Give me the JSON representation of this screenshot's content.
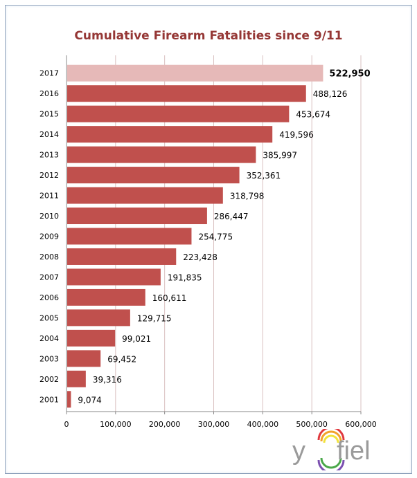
{
  "chart_data": {
    "type": "bar",
    "orientation": "horizontal",
    "title": "Cumulative Firearm Fatalities since 9/11",
    "xlabel": "",
    "ylabel": "",
    "categories": [
      "2001",
      "2002",
      "2003",
      "2004",
      "2005",
      "2006",
      "2007",
      "2008",
      "2009",
      "2010",
      "2011",
      "2012",
      "2013",
      "2014",
      "2015",
      "2016",
      "2017"
    ],
    "values": [
      9074,
      39316,
      69452,
      99021,
      129715,
      160611,
      191835,
      223428,
      254775,
      286447,
      318798,
      352361,
      385997,
      419596,
      453674,
      488126,
      522950
    ],
    "data_labels": [
      "9,074",
      "39,316",
      "69,452",
      "99,021",
      "129,715",
      "160,611",
      "191,835",
      "223,428",
      "254,775",
      "286,447",
      "318,798",
      "352,361",
      "385,997",
      "419,596",
      "453,674",
      "488,126",
      "522,950"
    ],
    "highlight_category": "2017",
    "xlim": [
      0,
      600000
    ],
    "xticks": [
      0,
      100000,
      200000,
      300000,
      400000,
      500000,
      600000
    ],
    "xtick_labels": [
      "0",
      "100,000",
      "200,000",
      "300,000",
      "400,000",
      "500,000",
      "600,000"
    ],
    "grid": true,
    "colors": {
      "bar": "#c0504d",
      "highlight": "#e6b9b8",
      "title": "#953735",
      "grid": "#d9c0c0"
    }
  },
  "watermark": "yofiel"
}
